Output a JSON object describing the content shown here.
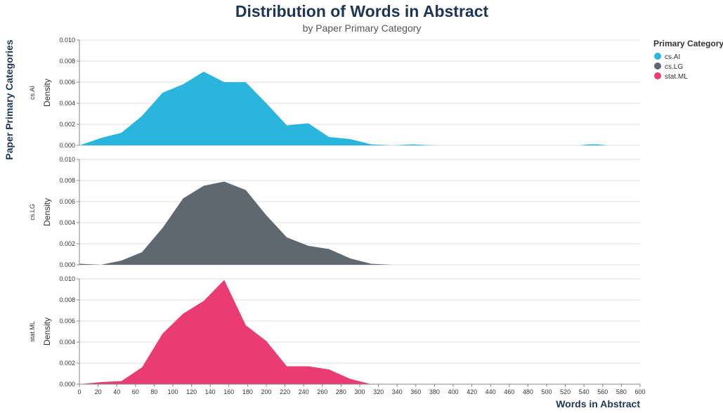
{
  "chart_data": {
    "type": "area",
    "title": "Distribution of Words in Abstract",
    "subtitle": "by Paper Primary Category",
    "xlabel": "Words in Abstract",
    "ylabel": "Density",
    "row_title": "Paper Primary Categories",
    "xlim": [
      0,
      600
    ],
    "ylim": [
      0,
      0.01
    ],
    "x_ticks": [
      "0",
      "20",
      "40",
      "60",
      "80",
      "100",
      "120",
      "140",
      "160",
      "180",
      "200",
      "220",
      "240",
      "260",
      "280",
      "300",
      "320",
      "340",
      "360",
      "380",
      "400",
      "420",
      "440",
      "460",
      "480",
      "500",
      "520",
      "540",
      "560",
      "580",
      "600"
    ],
    "y_ticks": [
      "0.000",
      "0.002",
      "0.004",
      "0.006",
      "0.008",
      "0.010"
    ],
    "grid": true,
    "legend": {
      "title": "Primary Category",
      "position": "top-right"
    },
    "series": [
      {
        "name": "cs.AI",
        "color": "#29b5dc",
        "x": [
          0,
          23,
          45,
          67,
          89,
          111,
          133,
          155,
          178,
          200,
          222,
          245,
          267,
          290,
          312,
          335,
          357,
          380,
          400,
          420,
          440,
          460,
          480,
          500,
          520,
          535,
          545,
          555,
          565,
          575
        ],
        "y": [
          0.0,
          0.0007,
          0.0012,
          0.0028,
          0.005,
          0.0058,
          0.007,
          0.006,
          0.006,
          0.004,
          0.0019,
          0.0021,
          0.0008,
          0.0006,
          0.0001,
          0.0,
          0.0001,
          0.0,
          0.0,
          0.0,
          0.0,
          0.0,
          0.0,
          0.0,
          0.0,
          0.0,
          0.0001,
          0.0001,
          0.0,
          0.0
        ]
      },
      {
        "name": "cs.LG",
        "color": "#5f6770",
        "x": [
          0,
          23,
          45,
          67,
          89,
          111,
          133,
          155,
          178,
          200,
          222,
          245,
          267,
          290,
          312,
          335
        ],
        "y": [
          0.0001,
          0.0,
          0.0004,
          0.0012,
          0.0035,
          0.0063,
          0.0075,
          0.0079,
          0.0071,
          0.0047,
          0.0026,
          0.0018,
          0.0015,
          0.0006,
          0.0001,
          0.0
        ]
      },
      {
        "name": "stat.ML",
        "color": "#ea3b73",
        "x": [
          0,
          23,
          45,
          67,
          89,
          111,
          133,
          155,
          178,
          200,
          222,
          245,
          267,
          290,
          312
        ],
        "y": [
          0.0,
          0.0002,
          0.0003,
          0.0016,
          0.0048,
          0.0067,
          0.0079,
          0.0099,
          0.0056,
          0.0041,
          0.0017,
          0.0017,
          0.0014,
          0.0005,
          0.0
        ]
      }
    ]
  }
}
